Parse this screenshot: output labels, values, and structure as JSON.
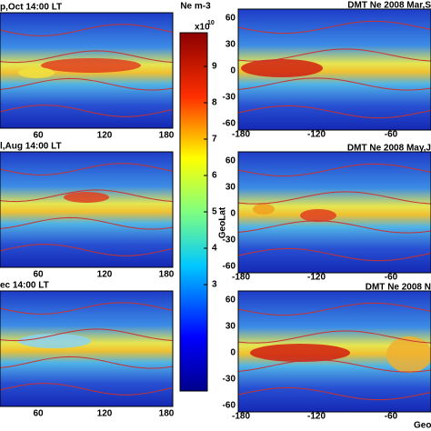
{
  "left_panels": [
    {
      "title": "p,Oct 14:00 LT",
      "xticks": [
        "60",
        "120",
        "180"
      ]
    },
    {
      "title": "l,Aug 14:00 LT",
      "xticks": [
        "60",
        "120",
        "180"
      ]
    },
    {
      "title": "ec 14:00 LT",
      "xticks": [
        "60",
        "120",
        "180"
      ]
    }
  ],
  "colorbar": {
    "unit": "Ne m-3",
    "scale": "x10",
    "exponent": "10",
    "ticks": [
      "9",
      "8",
      "7",
      "6",
      "5",
      "4",
      "3"
    ]
  },
  "y_axis_label": "GeoLat",
  "right_panels": [
    {
      "title": "DMT Ne 2008 Mar,S",
      "yticks": [
        "60",
        "30",
        "0",
        "-30",
        "-60"
      ],
      "xticks": [
        "-180",
        "-120",
        "-60"
      ]
    },
    {
      "title": "DMT Ne 2008 May,J",
      "yticks": [
        "60",
        "30",
        "0",
        "-30",
        "-60"
      ],
      "xticks": [
        "-180",
        "-120",
        "-60"
      ]
    },
    {
      "title": "DMT Ne 2008 N",
      "yticks": [
        "60",
        "30",
        "0",
        "-30",
        "-60"
      ],
      "xticks": [
        "-180",
        "-120",
        "-60"
      ]
    }
  ],
  "x_axis_label": "Geo"
}
